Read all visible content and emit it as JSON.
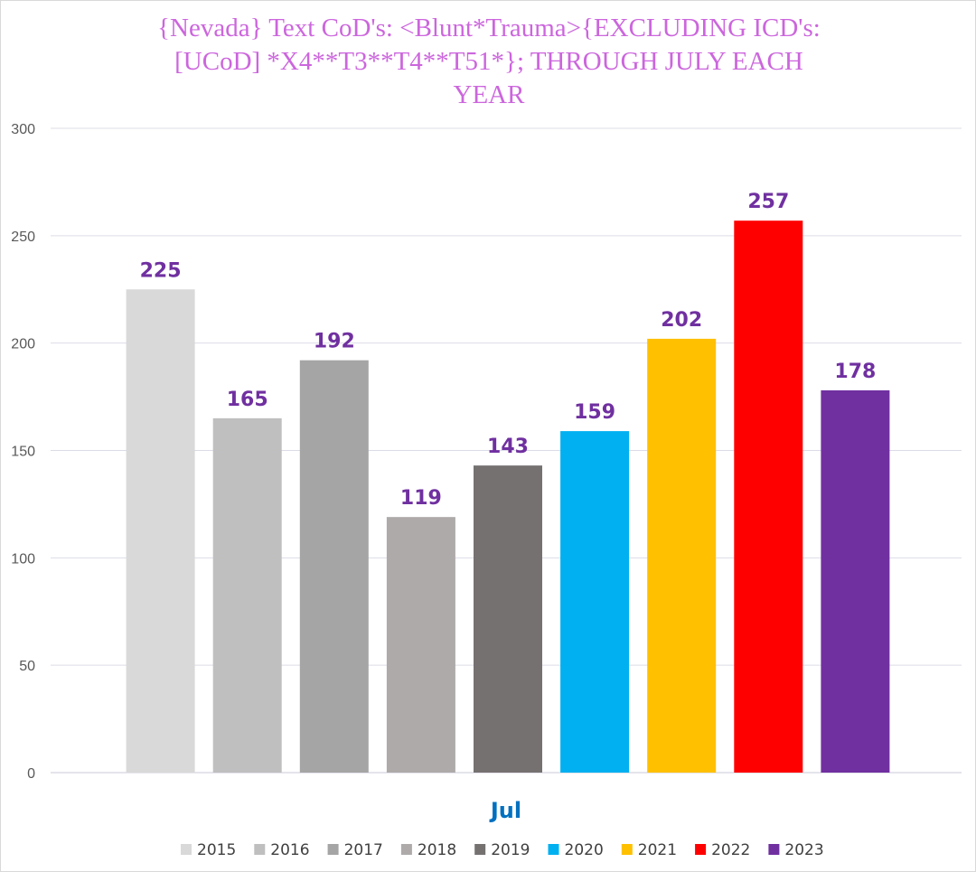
{
  "chart_data": {
    "type": "bar",
    "title": "{Nevada}  Text CoD's: <Blunt*Trauma>{EXCLUDING ICD's:\n[UCoD] *X4**T3**T4**T51*}; THROUGH JULY EACH\nYEAR",
    "categories": [
      "Jul"
    ],
    "series": [
      {
        "name": "2015",
        "values": [
          225
        ],
        "color": "#d9d9d9"
      },
      {
        "name": "2016",
        "values": [
          165
        ],
        "color": "#bfbfbf"
      },
      {
        "name": "2017",
        "values": [
          192
        ],
        "color": "#a5a5a5"
      },
      {
        "name": "2018",
        "values": [
          119
        ],
        "color": "#aeaaaa"
      },
      {
        "name": "2019",
        "values": [
          143
        ],
        "color": "#767171"
      },
      {
        "name": "2020",
        "values": [
          159
        ],
        "color": "#00b0f0"
      },
      {
        "name": "2021",
        "values": [
          202
        ],
        "color": "#ffc000"
      },
      {
        "name": "2022",
        "values": [
          257
        ],
        "color": "#ff0000"
      },
      {
        "name": "2023",
        "values": [
          178
        ],
        "color": "#7030a0"
      }
    ],
    "ylim": [
      0,
      300
    ],
    "yticks": [
      0,
      50,
      100,
      150,
      200,
      250,
      300
    ],
    "xlabel": "",
    "ylabel": "",
    "grid": true,
    "legend_position": "bottom",
    "title_color": "#cc66dd",
    "data_label_color": "#7030a0",
    "category_label_color": "#0070c0"
  }
}
